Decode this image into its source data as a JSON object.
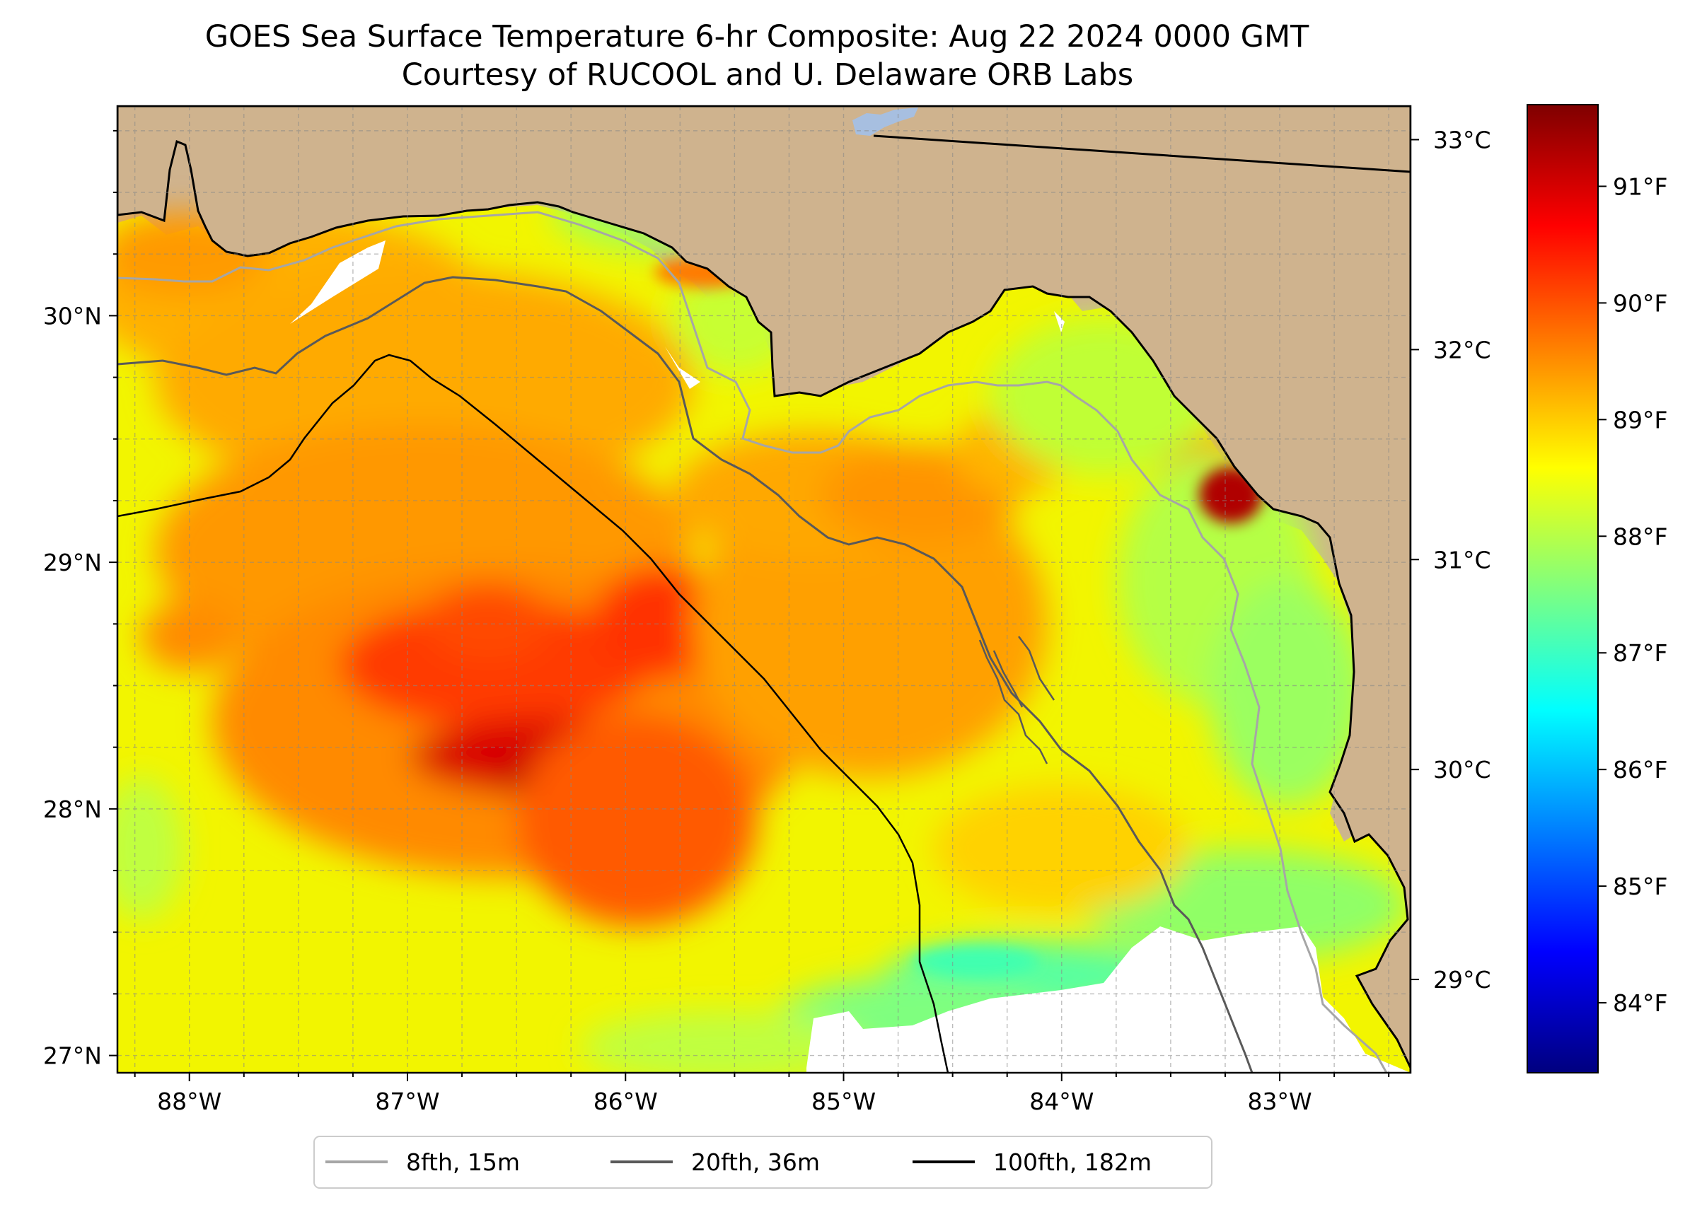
{
  "title": {
    "line1": "GOES Sea Surface Temperature 6-hr Composite: Aug 22 2024 0000 GMT",
    "line2": "Courtesy of RUCOOL and U. Delaware ORB Labs"
  },
  "map": {
    "lon_range": [
      -88.33,
      -82.4
    ],
    "lat_range": [
      26.93,
      30.85
    ],
    "land_color": "#cfb38e",
    "nodata_color": "#ffffff",
    "coast_color": "#000000",
    "lake_color": "#a7bfe0",
    "grid_color": "#888888",
    "grid": true,
    "lon_ticks": [
      {
        "value": -88,
        "label": "88°W"
      },
      {
        "value": -87,
        "label": "87°W"
      },
      {
        "value": -86,
        "label": "86°W"
      },
      {
        "value": -85,
        "label": "85°W"
      },
      {
        "value": -84,
        "label": "84°W"
      },
      {
        "value": -83,
        "label": "83°W"
      }
    ],
    "lat_ticks": [
      {
        "value": 30,
        "label": "30°N"
      },
      {
        "value": 29,
        "label": "29°N"
      },
      {
        "value": 28,
        "label": "28°N"
      },
      {
        "value": 27,
        "label": "27°N"
      }
    ]
  },
  "colorbar": {
    "colormap": "jet",
    "celsius_ticks": [
      {
        "value": 33,
        "label": "33°C"
      },
      {
        "value": 32,
        "label": "32°C"
      },
      {
        "value": 31,
        "label": "31°C"
      },
      {
        "value": 30,
        "label": "30°C"
      },
      {
        "value": 29,
        "label": "29°C"
      }
    ],
    "fahrenheit_ticks": [
      {
        "value": 91,
        "label": "91°F"
      },
      {
        "value": 90,
        "label": "90°F"
      },
      {
        "value": 89,
        "label": "89°F"
      },
      {
        "value": 88,
        "label": "88°F"
      },
      {
        "value": 87,
        "label": "87°F"
      },
      {
        "value": 86,
        "label": "86°F"
      },
      {
        "value": 85,
        "label": "85°F"
      },
      {
        "value": 84,
        "label": "84°F"
      }
    ],
    "range_f": [
      83.4,
      91.7
    ],
    "stops": [
      "#00007f",
      "#0000ff",
      "#007fff",
      "#00ffff",
      "#7fff7f",
      "#ffff00",
      "#ff7f00",
      "#ff0000",
      "#7f0000"
    ]
  },
  "legend": {
    "placement": "bottom-center",
    "items": [
      {
        "label": "8fth, 15m",
        "color": "#a6a6a6"
      },
      {
        "label": "20fth, 36m",
        "color": "#595959"
      },
      {
        "label": "100fth, 182m",
        "color": "#000000"
      }
    ]
  }
}
